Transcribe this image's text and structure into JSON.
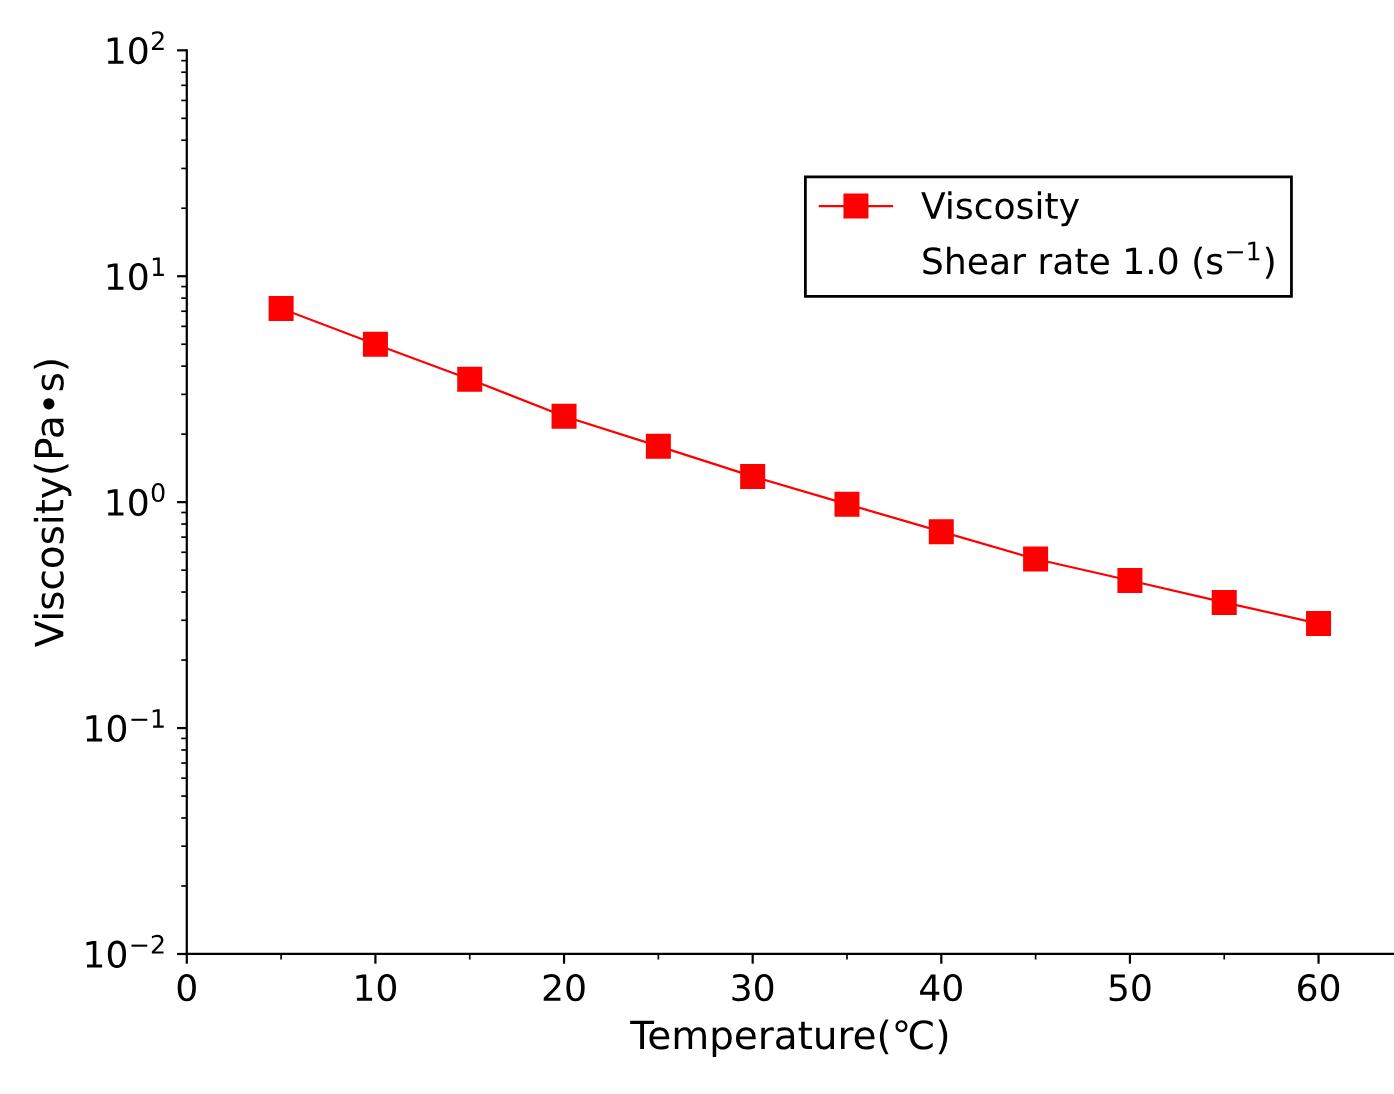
{
  "chart_data": {
    "type": "line",
    "xlabel": "Temperature(℃)",
    "ylabel": "Viscosity(Pa•s)",
    "x": [
      5,
      10,
      15,
      20,
      25,
      30,
      35,
      40,
      45,
      50,
      55,
      60
    ],
    "series": [
      {
        "name": "Viscosity",
        "color": "#ff0000",
        "values": [
          7.2,
          5.0,
          3.5,
          2.4,
          1.77,
          1.3,
          0.98,
          0.74,
          0.56,
          0.45,
          0.36,
          0.29
        ]
      }
    ],
    "annotations": [
      "Shear rate 1.0 (s$^{−1}$)"
    ],
    "log": "y",
    "marker": "square",
    "line_style": "solid",
    "legend": "top right",
    "grid": false,
    "xlim": [
      0,
      64
    ],
    "xticks": [
      0,
      10,
      20,
      30,
      40,
      50,
      60
    ],
    "ylim": [
      0.01,
      100
    ],
    "yticks": [
      {
        "value": 0.01,
        "label": "10$^{−2}$"
      },
      {
        "value": 0.1,
        "label": "10$^{−1}$"
      },
      {
        "value": 1,
        "label": "10$^{0}$"
      },
      {
        "value": 10,
        "label": "10$^{1}$"
      },
      {
        "value": 100,
        "label": "10$^{2}$"
      }
    ]
  }
}
